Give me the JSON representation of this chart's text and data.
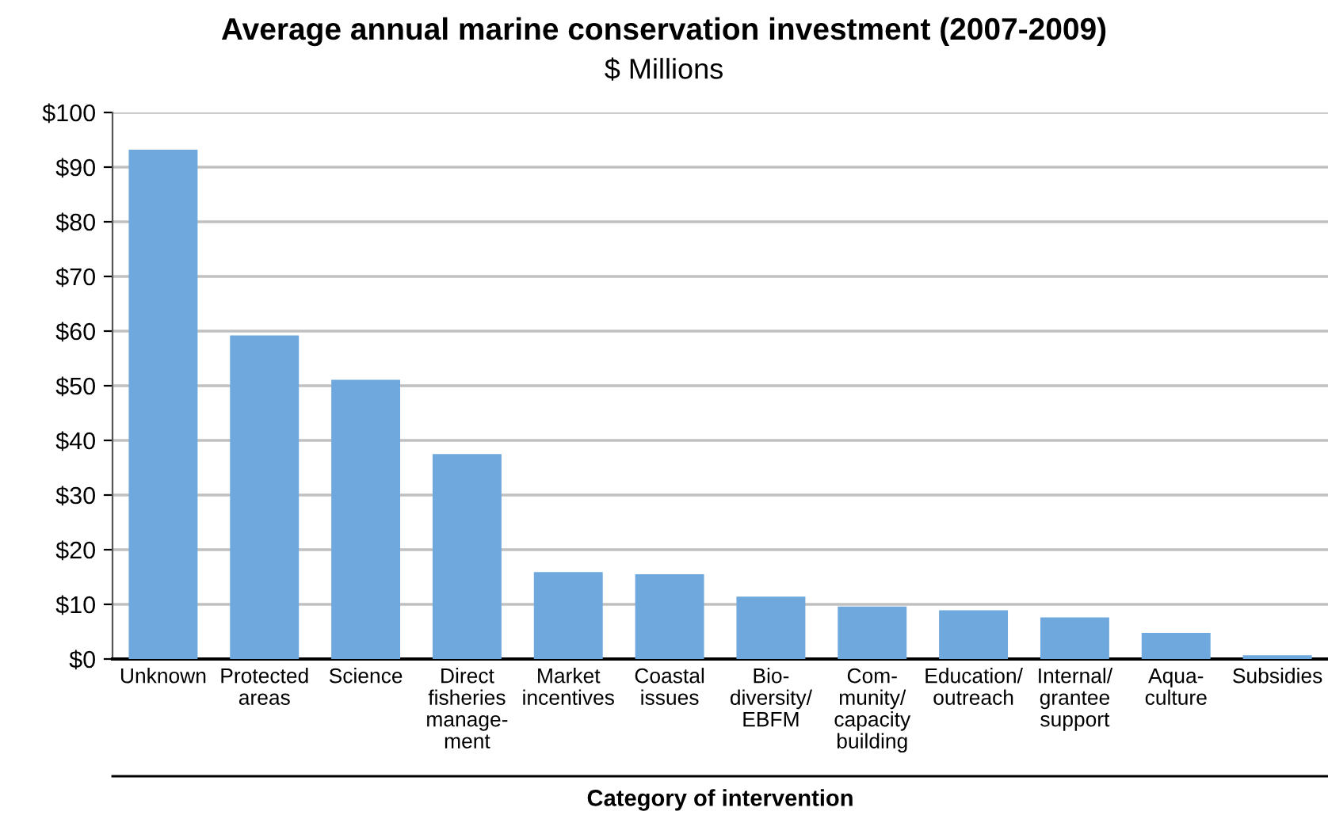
{
  "chart_data": {
    "type": "bar",
    "title": "Average annual marine conservation investment (2007-2009)",
    "subtitle": "$ Millions",
    "xlabel": "Category of intervention",
    "categories": [
      "Unknown",
      "Protected\nareas",
      "Science",
      "Direct\nfisheries\nmanage-\nment",
      "Market\nincentives",
      "Coastal\nissues",
      "Bio-\ndiversity/\nEBFM",
      "Com-\nmunity/\ncapacity\nbuilding",
      "Education/\noutreach",
      "Internal/\ngrantee\nsupport",
      "Aqua-\nculture",
      "Subsidies"
    ],
    "values": [
      93.2,
      59.2,
      51.1,
      37.5,
      15.9,
      15.5,
      11.4,
      9.6,
      8.9,
      7.6,
      4.8,
      0.7
    ],
    "color": "#6fa8dc",
    "ylim": [
      0,
      100
    ],
    "yticks": [
      {
        "value": 0,
        "label": "$0"
      },
      {
        "value": 10,
        "label": "$10"
      },
      {
        "value": 20,
        "label": "$20"
      },
      {
        "value": 30,
        "label": "$30"
      },
      {
        "value": 40,
        "label": "$40"
      },
      {
        "value": 50,
        "label": "$50"
      },
      {
        "value": 60,
        "label": "$60"
      },
      {
        "value": 70,
        "label": "$70"
      },
      {
        "value": 80,
        "label": "$80"
      },
      {
        "value": 90,
        "label": "$90"
      },
      {
        "value": 100,
        "label": "$100"
      }
    ],
    "grid": "y",
    "legend": false
  }
}
